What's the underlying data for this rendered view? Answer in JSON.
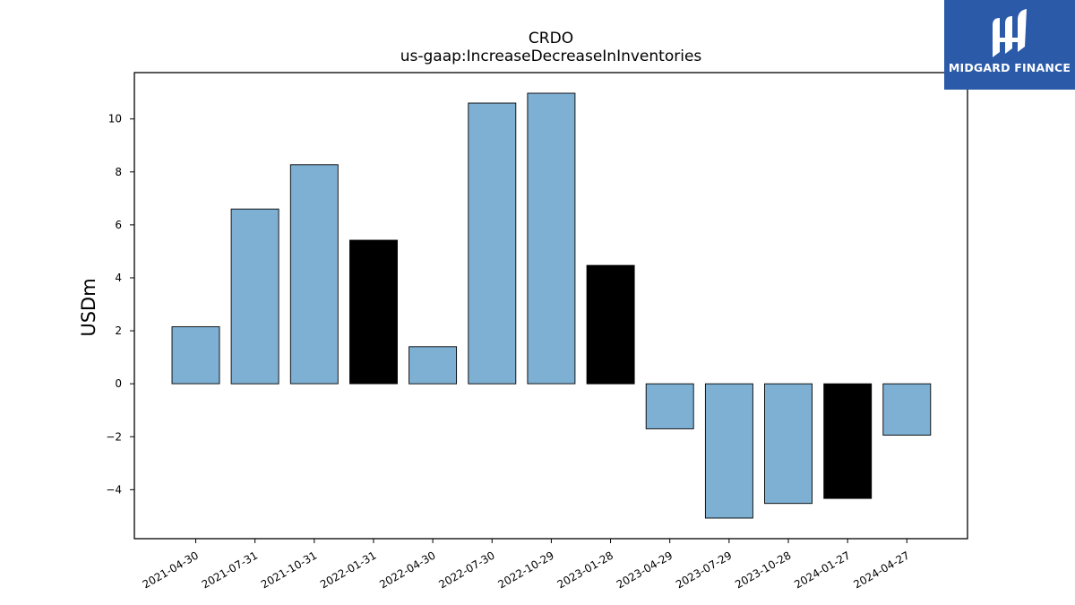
{
  "chart_data": {
    "type": "bar",
    "title": "CRDO",
    "subtitle": "us-gaap:IncreaseDecreaseInInventories",
    "xlabel": "",
    "ylabel": "USDm",
    "categories": [
      "2021-04-30",
      "2021-07-31",
      "2021-10-31",
      "2022-01-31",
      "2022-04-30",
      "2022-07-30",
      "2022-10-29",
      "2023-01-28",
      "2023-04-29",
      "2023-07-29",
      "2023-10-28",
      "2024-01-27",
      "2024-04-27"
    ],
    "values": [
      2.15,
      6.6,
      8.27,
      5.42,
      1.4,
      10.6,
      10.97,
      4.47,
      -1.7,
      -5.07,
      -4.52,
      -4.33,
      -1.94
    ],
    "highlight": [
      false,
      false,
      false,
      true,
      false,
      false,
      false,
      true,
      false,
      false,
      false,
      true,
      false
    ],
    "ylim": [
      -5.85,
      11.75
    ],
    "yticks": [
      -4,
      -2,
      0,
      2,
      4,
      6,
      8,
      10
    ],
    "grid": false,
    "colors": {
      "bar": "#7eb0d4",
      "highlight_bar": "#000000",
      "edge": "#000000"
    }
  },
  "logo": {
    "text": "MIDGARD FINANCE",
    "icon": "midgard-logo-icon",
    "background": "#2b5aa8"
  }
}
